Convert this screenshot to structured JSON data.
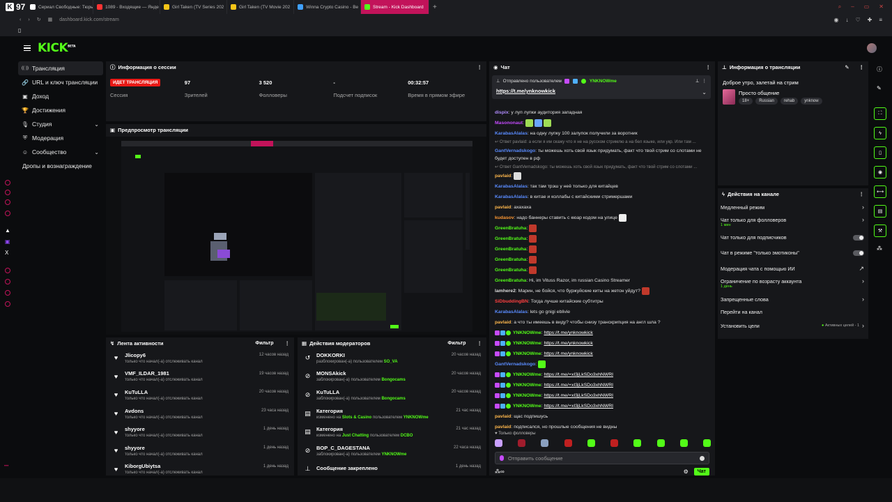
{
  "browser": {
    "badge": "97",
    "tabs": [
      {
        "label": "Сериал Свободные: Тюрь",
        "color": "#ffffff"
      },
      {
        "label": "1089 - Входящие — Янде",
        "color": "#ff3333"
      },
      {
        "label": "Girl Taken (TV Series 202",
        "color": "#f5c518"
      },
      {
        "label": "Girl Taken (TV Movie 202",
        "color": "#f5c518"
      },
      {
        "label": "Winna Crypto Casino - Be",
        "color": "#3fa0ff"
      },
      {
        "label": "Stream - Kick Dashboard",
        "color": "#53fc18"
      }
    ],
    "url": "dashboard.kick.com/stream"
  },
  "brand": {
    "logo": "KICK",
    "beta": "BETA",
    "accent": "#53fc18"
  },
  "nav": [
    {
      "label": "Трансляция",
      "icon": "broadcast-icon",
      "glyph": "((·))",
      "active": true
    },
    {
      "label": "URL и ключ трансляции",
      "icon": "link-icon",
      "glyph": "🔗"
    },
    {
      "label": "Доход",
      "icon": "money-icon",
      "glyph": "▣"
    },
    {
      "label": "Достижения",
      "icon": "trophy-icon",
      "glyph": "🏆"
    },
    {
      "label": "Студия",
      "icon": "studio-icon",
      "glyph": "🎙",
      "chevron": true
    },
    {
      "label": "Модерация",
      "icon": "shield-icon",
      "glyph": "⛨"
    },
    {
      "label": "Сообщество",
      "icon": "community-icon",
      "glyph": "☺",
      "chevron": true
    },
    {
      "label": "Дропы и вознаграждение",
      "icon": "",
      "glyph": ""
    }
  ],
  "session": {
    "title": "Информация о сессии",
    "live_badge": "ИДЕТ ТРАНСЛЯЦИЯ",
    "stats": [
      {
        "value": "",
        "label": "Сессия"
      },
      {
        "value": "97",
        "label": "Зрителей"
      },
      {
        "value": "3 520",
        "label": "Фолловеры"
      },
      {
        "value": "-",
        "label": "Подсчет подписок"
      },
      {
        "value": "00:32:57",
        "label": "Время в прямом эфире"
      }
    ]
  },
  "preview": {
    "title": "Предпросмотр трансляции"
  },
  "activity": {
    "title": "Лента активности",
    "filter": "Фильтр",
    "rows": [
      {
        "name": "Jlicopy6",
        "desc": "только что начал(-а) отслеживать канал",
        "time": "12 часов назад"
      },
      {
        "name": "VMF_ILDAR_1981",
        "desc": "только что начал(-а) отслеживать канал",
        "time": "19 часов назад"
      },
      {
        "name": "KuTuLLA",
        "desc": "только что начал(-а) отслеживать канал",
        "time": "20 часов назад"
      },
      {
        "name": "Avdons",
        "desc": "только что начал(-а) отслеживать канал",
        "time": "23 часа назад"
      },
      {
        "name": "shyyore",
        "desc": "только что начал(-а) отслеживать канал",
        "time": "1 день назад"
      },
      {
        "name": "shyyore",
        "desc": "только что начал(-а) отслеживать канал",
        "time": "1 день назад"
      },
      {
        "name": "KiborgUbiytsa",
        "desc": "только что начал(-а) отслеживать канал",
        "time": "1 день назад"
      }
    ]
  },
  "moderation": {
    "title": "Действия модераторов",
    "filter": "Фильтр",
    "rows": [
      {
        "icon": "unban-icon",
        "glyph": "↺",
        "name": "DOKKORKI",
        "pre": "разблокирован(-а) пользователем",
        "g1": "SO_VA",
        "mid": "",
        "g2": "",
        "time": "20 часов назад"
      },
      {
        "icon": "ban-icon",
        "glyph": "⊘",
        "name": "MONSAkick",
        "pre": "заблокирован(-а) пользователем",
        "g1": "Bongocams",
        "mid": "",
        "g2": "",
        "time": "20 часов назад"
      },
      {
        "icon": "ban-icon",
        "glyph": "⊘",
        "name": "KuTuLLA",
        "pre": "заблокирован(-а) пользователем",
        "g1": "Bongocams",
        "mid": "",
        "g2": "",
        "time": "20 часов назад"
      },
      {
        "icon": "category-icon",
        "glyph": "▤",
        "name": "Категория",
        "pre": "изменено на",
        "g1": "Slots & Casino",
        "mid": "пользователем",
        "g2": "YNKNOWme",
        "time": "21 час назад"
      },
      {
        "icon": "category-icon",
        "glyph": "▤",
        "name": "Категория",
        "pre": "изменено на",
        "g1": "Just Chatting",
        "mid": "пользователем",
        "g2": "DCBO",
        "time": "21 час назад"
      },
      {
        "icon": "ban-icon",
        "glyph": "⊘",
        "name": "BOP_C_DAGESTANA",
        "pre": "заблокирован(-а) пользователем",
        "g1": "YNKNOWme",
        "mid": "",
        "g2": "",
        "time": "22 часа назад"
      },
      {
        "icon": "pin-icon",
        "glyph": "⊥",
        "name": "Сообщение закреплено",
        "pre": "",
        "g1": "",
        "mid": "",
        "g2": "",
        "time": "1 день назад"
      }
    ]
  },
  "chat": {
    "title": "Чат",
    "pinned_by": "Отправлено пользователем",
    "pinned_user": "YNKNOWme",
    "pinned_link": "https://t.me/ynknowkick",
    "followers_only": "Только фолловеры",
    "placeholder": "Отправить сообщение",
    "send": "Чат",
    "messages": [
      {
        "user": "dispix",
        "color": "#b18cff",
        "text": ": у луп лупки аудитория западная"
      },
      {
        "user": "Masononaut",
        "color": "#c64bff",
        "text": ":",
        "emotes": [
          "#9fdc55",
          "#6aa6ff",
          "#9fdc55"
        ]
      },
      {
        "user": "KarabasAlalas",
        "color": "#5a8cff",
        "text": ": на одну лупку 100 залупок получили за воротник"
      },
      {
        "reply": "Ответ pavlaid: а если я им скажу что я не на русском стримлю а на бел языке, или укр. Или там ..."
      },
      {
        "user": "GantVernadskogo",
        "color": "#5a8cff",
        "text": ": ты можешь хоть свой язык придумать, факт что твой стрим со слотами не будет доступен в рф",
        "wrap": true
      },
      {
        "reply": "Ответ GantVernadskogo: ты можешь хоть свой язык придумать, факт что твой стрим со слотами ..."
      },
      {
        "user": "pavlaid",
        "color": "#ffb84d",
        "text": ":",
        "emotes": [
          "#dddddd"
        ]
      },
      {
        "user": "KarabasAlalas",
        "color": "#5a8cff",
        "text": ": так там трэш у неё только для китайцев"
      },
      {
        "user": "KarabasAlalas",
        "color": "#5a8cff",
        "text": ": в китае и коллабы с китайскими стримершами"
      },
      {
        "user": "pavlaid",
        "color": "#ffb84d",
        "text": ": ахахаха"
      },
      {
        "user": "kudasov",
        "color": "#ff9933",
        "text": ": надо баннеры ставить с кюар кодом на улице",
        "emotes": [
          "#eeeeee"
        ]
      },
      {
        "user": "GreenBratuha",
        "color": "#53fc18",
        "text": ":",
        "emotes": [
          "#c0392b"
        ]
      },
      {
        "user": "GreenBratuha",
        "color": "#53fc18",
        "text": ":",
        "emotes": [
          "#c0392b"
        ]
      },
      {
        "user": "GreenBratuha",
        "color": "#53fc18",
        "text": ":",
        "emotes": [
          "#c0392b"
        ]
      },
      {
        "user": "GreenBratuha",
        "color": "#53fc18",
        "text": ":",
        "emotes": [
          "#c0392b"
        ]
      },
      {
        "user": "GreenBratuha",
        "color": "#53fc18",
        "text": ":",
        "emotes": [
          "#c0392b"
        ]
      },
      {
        "user": "GreenBratuha",
        "color": "#53fc18",
        "text": ": Hi, im Vituss Razor, im russian Casino Streamer"
      },
      {
        "user": "lamhere2",
        "color": "#dddddd",
        "text": ": Марин, не бойся, что буржуйские киты на жетон уйдут?",
        "emotes": [
          "#c0392b"
        ]
      },
      {
        "user": "SiDbuddingBN",
        "color": "#ff4040",
        "text": ": Тогда лучше китайские субтитры"
      },
      {
        "user": "KarabasAlalas",
        "color": "#5a8cff",
        "text": ": lets go gnigi eblivie"
      },
      {
        "user": "pavlaid",
        "color": "#ffb84d",
        "text": ": а что ты имеешь в виду? чтобы снизу транскрипция на англ шла ?"
      },
      {
        "user": "YNKNOWme",
        "color": "#53fc18",
        "text": ": ",
        "link": "https://t.me/ynknowkick",
        "badges": true
      },
      {
        "user": "YNKNOWme",
        "color": "#53fc18",
        "text": ": ",
        "link": "https://t.me/ynknowkick",
        "badges": true
      },
      {
        "user": "YNKNOWme",
        "color": "#53fc18",
        "text": ": ",
        "link": "https://t.me/ynknowkick",
        "badges": true
      },
      {
        "user": "GantVernadskogo",
        "color": "#5a8cff",
        "text": ":",
        "emotes": [
          "#53fc18"
        ]
      },
      {
        "user": "YNKNOWme",
        "color": "#53fc18",
        "text": ": ",
        "link": "https://t.me/+xI3jLkSDo3xhNWRI",
        "badges": true
      },
      {
        "user": "YNKNOWme",
        "color": "#53fc18",
        "text": ": ",
        "link": "https://t.me/+xI3jLkSDo3xhNWRI",
        "badges": true
      },
      {
        "user": "YNKNOWme",
        "color": "#53fc18",
        "text": ": ",
        "link": "https://t.me/+xI3jLkSDo3xhNWRI",
        "badges": true
      },
      {
        "user": "YNKNOWme",
        "color": "#53fc18",
        "text": ": ",
        "link": "https://t.me/+xI3jLkSDo3xhNWRI",
        "badges": true
      },
      {
        "user": "pavlaid",
        "color": "#ffb84d",
        "text": ": щас подпишусь"
      },
      {
        "user": "pavlaid",
        "color": "#ffb84d",
        "text": ": подписался, но прошлые сообщения не видны"
      }
    ]
  },
  "stream_info": {
    "title": "Информация о трансляции",
    "stream_title": "Доброе утро, залетай на стрим",
    "category": "Просто общение",
    "tags": [
      "18+",
      "Russian",
      "rehab",
      "ynknow"
    ]
  },
  "channel_actions": {
    "title": "Действия на канале",
    "items": [
      {
        "label": "Медленный режим",
        "control": "chevron"
      },
      {
        "label": "Чат только для фолловеров",
        "sub": "1 мин",
        "control": "chevron"
      },
      {
        "label": "Чат только для подписчиков",
        "control": "toggle"
      },
      {
        "label": "Чат в режиме \"только эмотиконы\"",
        "control": "toggle"
      },
      {
        "label": "Модерация чата с помощью ИИ",
        "control": "external"
      },
      {
        "label": "Ограничение по возрасту аккаунта",
        "sub": "1 день",
        "control": "chevron"
      },
      {
        "label": "Запрещенные слова",
        "control": "chevron"
      },
      {
        "label": "Перейти на канал",
        "control": "none"
      },
      {
        "label": "Установить цели",
        "extra": "Активных целей - 1",
        "control": "chevron"
      }
    ]
  }
}
